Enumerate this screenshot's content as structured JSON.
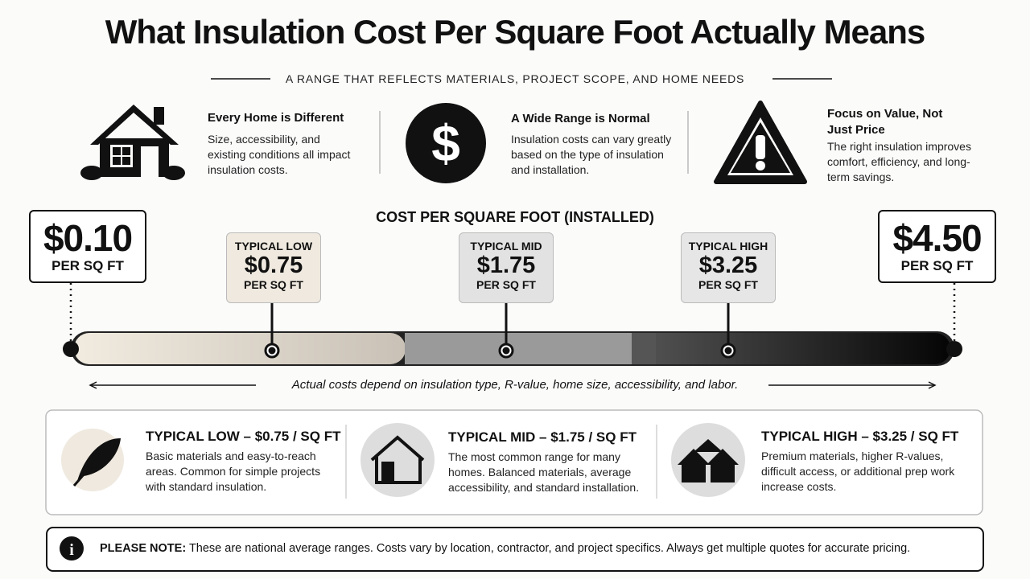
{
  "header": {
    "title": "What Insulation Cost Per Square Foot Actually Means",
    "subtitle": "A RANGE THAT REFLECTS MATERIALS, PROJECT SCOPE, AND HOME NEEDS"
  },
  "features": [
    {
      "title": "Every Home is Different",
      "text": "Size, accessibility, and existing conditions all impact insulation costs."
    },
    {
      "title": "A Wide Range is Normal",
      "text": "Insulation costs can vary greatly based on the type of insulation and installation."
    },
    {
      "title": "Focus on Value, Not Just Price",
      "text": "The right insulation improves comfort, efficiency, and long-term savings."
    }
  ],
  "scale": {
    "title": "COST PER SQUARE FOOT (INSTALLED)",
    "min": {
      "price": "$0.10",
      "unit": "PER SQ FT"
    },
    "max": {
      "price": "$4.50",
      "unit": "PER SQ FT"
    },
    "markers": [
      {
        "label": "TYPICAL LOW",
        "price": "$0.75",
        "unit": "PER SQ FT"
      },
      {
        "label": "TYPICAL MID",
        "price": "$1.75",
        "unit": "PER SQ FT"
      },
      {
        "label": "TYPICAL HIGH",
        "price": "$3.25",
        "unit": "PER SQ FT"
      }
    ],
    "note": "Actual costs depend on insulation type, R-value, home size, accessibility, and labor."
  },
  "tiers": [
    {
      "title": "TYPICAL LOW – $0.75 / SQ FT",
      "text": "Basic materials and easy-to-reach areas. Common for simple projects with standard insulation."
    },
    {
      "title": "TYPICAL MID – $1.75 / SQ FT",
      "text": "The most common range for many homes. Balanced materials, average accessibility, and standard installation."
    },
    {
      "title": "TYPICAL HIGH – $3.25 / SQ FT",
      "text": "Premium materials, higher R-values, difficult access, or additional prep work increase costs."
    }
  ],
  "note": {
    "label": "PLEASE NOTE:",
    "text": "These are national average ranges. Costs vary by location, contractor, and project specifics. Always get multiple quotes for accurate pricing."
  }
}
